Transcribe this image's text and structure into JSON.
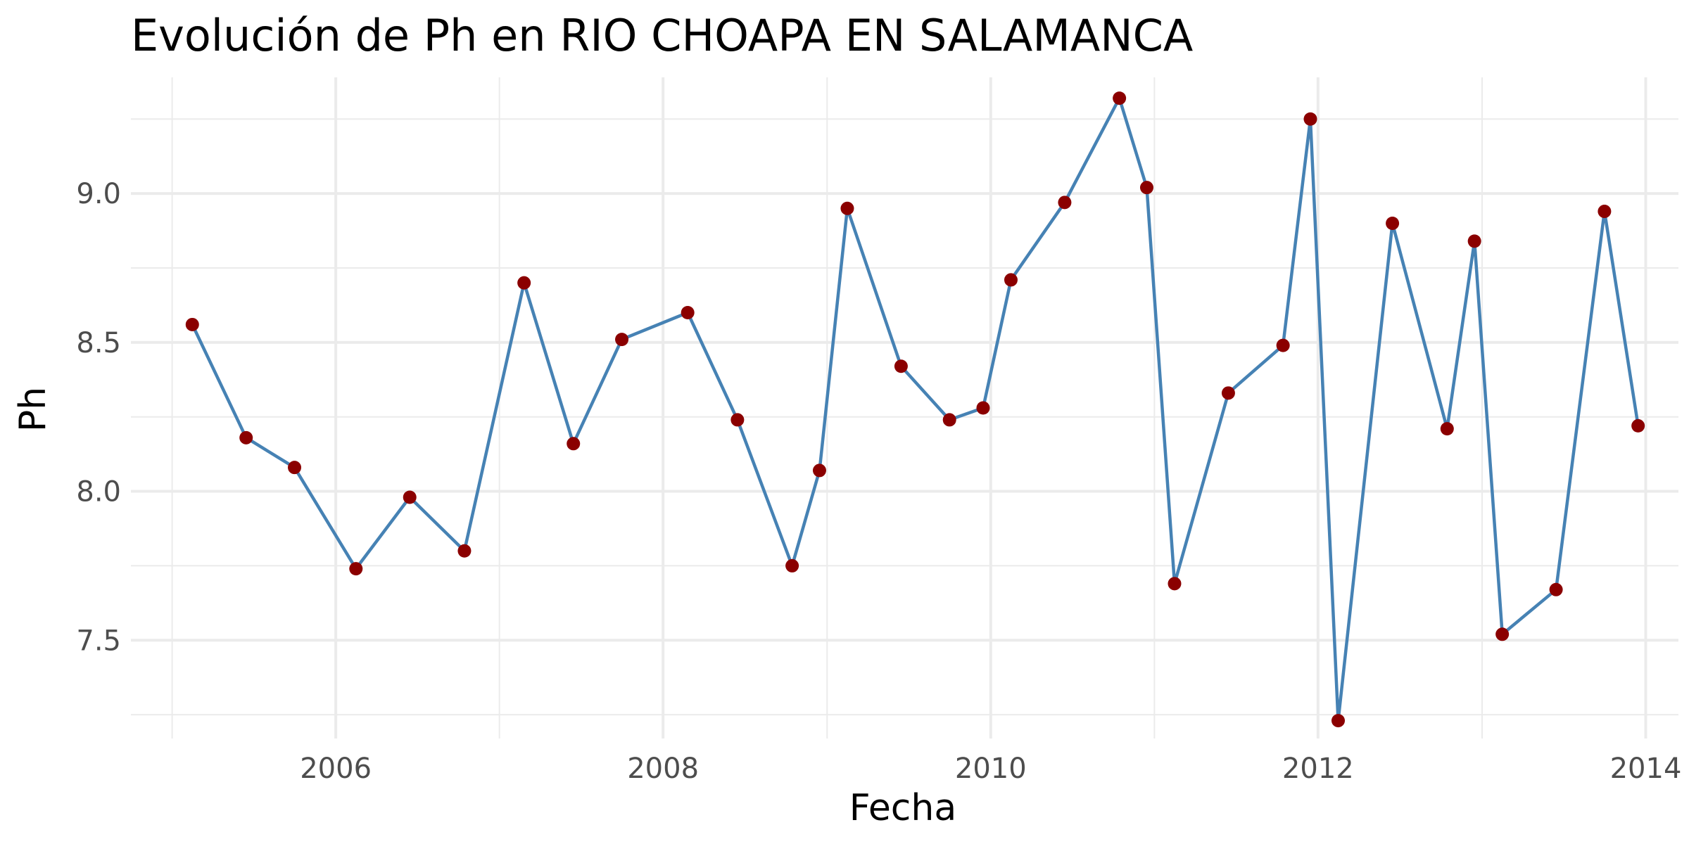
{
  "chart_data": {
    "type": "line",
    "title": "Evolución de Ph en RIO CHOAPA EN SALAMANCA",
    "xlabel": "Fecha",
    "ylabel": "Ph",
    "x_type": "date",
    "xlim": [
      "2004-10-01",
      "2014-03-15"
    ],
    "ylim": [
      7.17,
      9.39
    ],
    "x_ticks": [
      {
        "value": "2006-01-01",
        "label": "2006"
      },
      {
        "value": "2008-01-01",
        "label": "2008"
      },
      {
        "value": "2010-01-01",
        "label": "2010"
      },
      {
        "value": "2012-01-01",
        "label": "2012"
      },
      {
        "value": "2014-01-01",
        "label": "2014"
      }
    ],
    "x_minor_ticks": [
      "2005-01-01",
      "2007-01-01",
      "2009-01-01",
      "2011-01-01",
      "2013-01-01"
    ],
    "y_ticks": [
      {
        "value": 7.5,
        "label": "7.5"
      },
      {
        "value": 8.0,
        "label": "8.0"
      },
      {
        "value": 8.5,
        "label": "8.5"
      },
      {
        "value": 9.0,
        "label": "9.0"
      }
    ],
    "y_minor_ticks": [
      7.25,
      7.75,
      8.25,
      8.75,
      9.25
    ],
    "grid": true,
    "legend": "none",
    "colors": {
      "line": "#4682b4",
      "points": "#8b0000",
      "grid": "#ebebeb"
    },
    "series": [
      {
        "x": [
          "2005-02-15",
          "2005-06-15",
          "2005-10-01",
          "2006-02-15",
          "2006-06-15",
          "2006-10-15",
          "2007-02-25",
          "2007-06-15",
          "2007-10-01",
          "2008-02-25",
          "2008-06-15",
          "2008-10-15",
          "2008-12-15",
          "2009-02-15",
          "2009-06-15",
          "2009-10-01",
          "2009-12-15",
          "2010-02-15",
          "2010-06-15",
          "2010-10-15",
          "2010-12-15",
          "2011-02-15",
          "2011-06-15",
          "2011-10-15",
          "2011-12-15",
          "2012-02-15",
          "2012-06-15",
          "2012-10-15",
          "2012-12-15",
          "2013-02-15",
          "2013-06-15",
          "2013-10-01",
          "2013-12-15"
        ],
        "y": [
          8.56,
          8.18,
          8.08,
          7.74,
          7.98,
          7.8,
          8.7,
          8.16,
          8.51,
          8.6,
          8.24,
          7.75,
          8.07,
          8.95,
          8.42,
          8.24,
          8.28,
          8.71,
          8.97,
          9.32,
          9.02,
          7.69,
          8.33,
          8.49,
          9.25,
          7.23,
          8.9,
          8.21,
          8.84,
          7.52,
          7.67,
          8.94,
          8.22
        ]
      }
    ]
  }
}
